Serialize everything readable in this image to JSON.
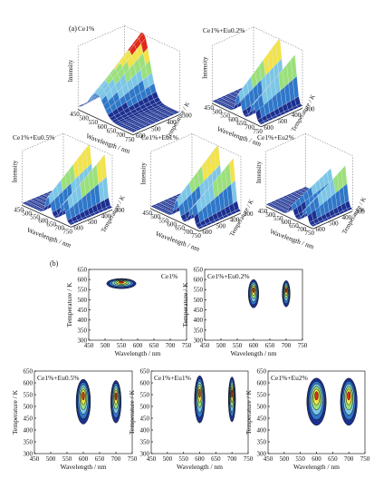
{
  "figure": {
    "panel_a_label": "(a)",
    "panel_b_label": "(b)",
    "stray_mark": "K"
  },
  "colors": {
    "low": "#1b2f8f",
    "mid1": "#2f77c8",
    "mid2": "#7cc6e6",
    "mid3": "#9be07a",
    "mid4": "#f2e34a",
    "high": "#e02a1a"
  },
  "surface_common": {
    "x_ticks": [
      "450",
      "500",
      "550",
      "600",
      "650",
      "700",
      "750"
    ],
    "y_ticks": [
      "300",
      "400",
      "500",
      "600"
    ],
    "xlabel": "Wavelength / nm",
    "ylabel": "Temperature / K",
    "zlabel": "Intensity"
  },
  "contour_common": {
    "x_ticks": [
      "450",
      "500",
      "550",
      "600",
      "650",
      "700",
      "750"
    ],
    "y_ticks": [
      "300",
      "350",
      "400",
      "450",
      "500",
      "550",
      "600",
      "650"
    ],
    "xlabel": "Wavelength / nm",
    "ylabel": "Temperature / K"
  },
  "chart_data": [
    {
      "type": "surface3d",
      "panel": "a",
      "title": "Ce1%",
      "xlabel": "Wavelength / nm",
      "ylabel": "Temperature / K",
      "zlabel": "Intensity",
      "xlim": [
        450,
        750
      ],
      "ylim": [
        300,
        600
      ],
      "peaks": [
        {
          "x": 550,
          "relative_height": 1.0
        }
      ]
    },
    {
      "type": "surface3d",
      "panel": "a",
      "title": "Ce1%+Eu0.2%",
      "xlabel": "Wavelength / nm",
      "ylabel": "Temperature / K",
      "zlabel": "Intensity",
      "xlim": [
        450,
        750
      ],
      "ylim": [
        300,
        600
      ],
      "peaks": [
        {
          "x": 610,
          "relative_height": 1.0
        },
        {
          "x": 700,
          "relative_height": 0.85
        }
      ]
    },
    {
      "type": "surface3d",
      "panel": "a",
      "title": "Ce1%+Eu0.5%",
      "xlabel": "Wavelength / nm",
      "ylabel": "Temperature / K",
      "zlabel": "Intensity",
      "xlim": [
        450,
        750
      ],
      "ylim": [
        300,
        600
      ],
      "peaks": [
        {
          "x": 610,
          "relative_height": 1.0
        },
        {
          "x": 700,
          "relative_height": 0.95
        }
      ]
    },
    {
      "type": "surface3d",
      "panel": "a",
      "title": "Ce1%+Eu1%",
      "xlabel": "Wavelength / nm",
      "ylabel": "Temperature / K",
      "zlabel": "Intensity",
      "xlim": [
        450,
        750
      ],
      "ylim": [
        300,
        600
      ],
      "peaks": [
        {
          "x": 610,
          "relative_height": 1.0
        },
        {
          "x": 700,
          "relative_height": 0.9
        }
      ]
    },
    {
      "type": "surface3d",
      "panel": "a",
      "title": "Ce1%+Eu2%",
      "xlabel": "Wavelength / nm",
      "ylabel": "Temperature / K",
      "zlabel": "Intensity",
      "xlim": [
        450,
        750
      ],
      "ylim": [
        300,
        600
      ],
      "peaks": [
        {
          "x": 610,
          "relative_height": 0.55
        },
        {
          "x": 700,
          "relative_height": 0.75
        }
      ]
    },
    {
      "type": "contour",
      "panel": "b",
      "title": "Ce1%",
      "xlabel": "Wavelength / nm",
      "ylabel": "Temperature / K",
      "xlim": [
        450,
        750
      ],
      "ylim": [
        300,
        650
      ],
      "centers": [
        {
          "x": 550,
          "y": 580,
          "rx": 45,
          "ry": 25
        }
      ]
    },
    {
      "type": "contour",
      "panel": "b",
      "title": "Ce1%+Eu0.2%",
      "xlabel": "Wavelength / nm",
      "ylabel": "Temperature / K",
      "xlim": [
        450,
        750
      ],
      "ylim": [
        300,
        650
      ],
      "centers": [
        {
          "x": 600,
          "y": 530,
          "rx": 16,
          "ry": 70
        },
        {
          "x": 700,
          "y": 530,
          "rx": 12,
          "ry": 65
        }
      ]
    },
    {
      "type": "contour",
      "panel": "b",
      "title": "Ce1%+Eu0.5%",
      "xlabel": "Wavelength / nm",
      "ylabel": "Temperature / K",
      "xlim": [
        450,
        750
      ],
      "ylim": [
        300,
        650
      ],
      "centers": [
        {
          "x": 600,
          "y": 520,
          "rx": 22,
          "ry": 95
        },
        {
          "x": 700,
          "y": 520,
          "rx": 16,
          "ry": 90
        }
      ]
    },
    {
      "type": "contour",
      "panel": "b",
      "title": "Ce1%+Eu1%",
      "xlabel": "Wavelength / nm",
      "ylabel": "Temperature / K",
      "xlim": [
        450,
        750
      ],
      "ylim": [
        300,
        650
      ],
      "centers": [
        {
          "x": 600,
          "y": 530,
          "rx": 16,
          "ry": 100
        },
        {
          "x": 700,
          "y": 530,
          "rx": 11,
          "ry": 95
        }
      ]
    },
    {
      "type": "contour",
      "panel": "b",
      "title": "Ce1%+Eu2%",
      "xlabel": "Wavelength / nm",
      "ylabel": "Temperature / K",
      "xlim": [
        450,
        750
      ],
      "ylim": [
        300,
        650
      ],
      "centers": [
        {
          "x": 600,
          "y": 520,
          "rx": 30,
          "ry": 100
        },
        {
          "x": 700,
          "y": 520,
          "rx": 26,
          "ry": 100
        }
      ]
    }
  ]
}
